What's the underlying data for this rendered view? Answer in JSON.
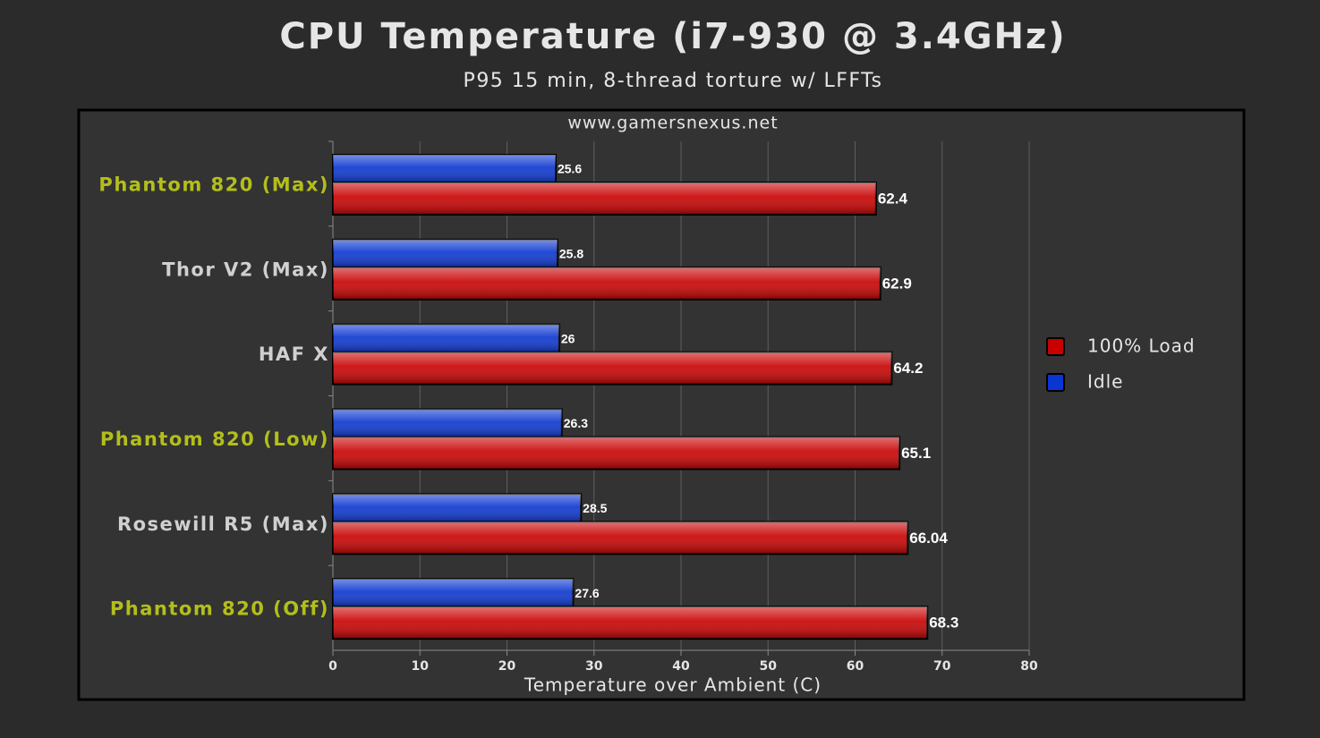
{
  "chart_data": {
    "type": "hbar",
    "title": "CPU Temperature (i7-930 @ 3.4GHz)",
    "subtitle": "P95 15 min, 8-thread torture w/ LFFTs",
    "source": "www.gamersnexus.net",
    "x_label": "Temperature over Ambient (C)",
    "categories": [
      "Phantom 820 (Max)",
      "Thor V2 (Max)",
      "HAF X",
      "Phantom 820 (Low)",
      "Rosewill R5 (Max)",
      "Phantom 820 (Off)"
    ],
    "category_label_colors": [
      "#b3bf1a",
      "#d0d0d0",
      "#d0d0d0",
      "#b3bf1a",
      "#d0d0d0",
      "#b3bf1a"
    ],
    "series": [
      {
        "name": "100% Load",
        "color": "#c80000",
        "values": [
          62.4,
          62.9,
          64.2,
          65.1,
          66.04,
          68.3
        ]
      },
      {
        "name": "Idle",
        "color": "#0a35d0",
        "values": [
          25.6,
          25.8,
          26,
          26.3,
          28.5,
          27.6
        ]
      }
    ],
    "xlim": [
      0,
      80
    ],
    "xticks": [
      0,
      10,
      20,
      30,
      40,
      50,
      60,
      70,
      80
    ],
    "grid": true,
    "legend": "right"
  }
}
